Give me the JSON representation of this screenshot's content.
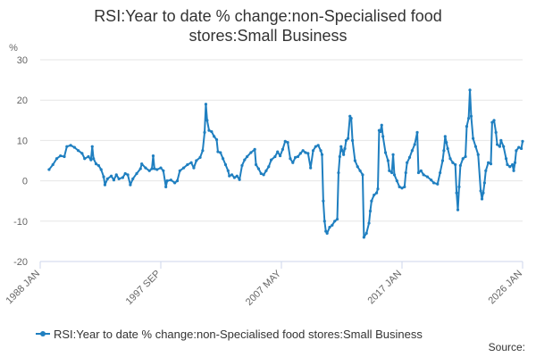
{
  "chart_data": {
    "type": "line",
    "title_line1": "RSI:Year to date % change:non-Specialised food",
    "title_line2": "stores:Small Business",
    "ylabel": "%",
    "ylim": [
      -20,
      30
    ],
    "yticks": [
      "30",
      "20",
      "10",
      "0",
      "-10",
      "-20"
    ],
    "xticks": [
      "1988 JAN",
      "1997 SEP",
      "2007 MAY",
      "2017 JAN",
      "2026 JAN"
    ],
    "xlim": [
      1988.0,
      2026.0
    ],
    "grid": true,
    "legend_position": "bottom",
    "source_label": "Source:",
    "color": "#1f7fc0",
    "series": [
      {
        "name": "RSI:Year to date % change:non-Specialised food stores:Small Business",
        "points": [
          [
            1988.7,
            2.8
          ],
          [
            1989.0,
            4.0
          ],
          [
            1989.3,
            5.5
          ],
          [
            1989.6,
            6.2
          ],
          [
            1989.9,
            6.0
          ],
          [
            1990.1,
            8.5
          ],
          [
            1990.4,
            8.8
          ],
          [
            1990.7,
            8.3
          ],
          [
            1991.0,
            7.5
          ],
          [
            1991.3,
            6.8
          ],
          [
            1991.5,
            5.5
          ],
          [
            1991.8,
            6.0
          ],
          [
            1992.0,
            5.2
          ],
          [
            1992.1,
            8.5
          ],
          [
            1992.2,
            5.5
          ],
          [
            1992.4,
            4.2
          ],
          [
            1992.6,
            3.8
          ],
          [
            1992.8,
            2.8
          ],
          [
            1993.0,
            1.0
          ],
          [
            1993.1,
            -1.0
          ],
          [
            1993.3,
            0.5
          ],
          [
            1993.6,
            1.2
          ],
          [
            1993.8,
            0.2
          ],
          [
            1994.0,
            1.5
          ],
          [
            1994.2,
            0.5
          ],
          [
            1994.5,
            0.8
          ],
          [
            1994.7,
            1.8
          ],
          [
            1994.9,
            1.5
          ],
          [
            1995.1,
            -1.0
          ],
          [
            1995.3,
            0.5
          ],
          [
            1995.6,
            1.8
          ],
          [
            1995.9,
            3.0
          ],
          [
            1996.0,
            4.2
          ],
          [
            1996.3,
            3.2
          ],
          [
            1996.6,
            2.5
          ],
          [
            1996.8,
            3.0
          ],
          [
            1996.9,
            6.2
          ],
          [
            1997.0,
            3.0
          ],
          [
            1997.2,
            2.8
          ],
          [
            1997.5,
            3.2
          ],
          [
            1997.7,
            2.5
          ],
          [
            1997.9,
            -1.5
          ],
          [
            1998.0,
            0.0
          ],
          [
            1998.3,
            0.2
          ],
          [
            1998.6,
            -0.5
          ],
          [
            1998.8,
            0.0
          ],
          [
            1999.0,
            2.5
          ],
          [
            1999.3,
            3.2
          ],
          [
            1999.6,
            4.0
          ],
          [
            1999.9,
            4.5
          ],
          [
            2000.1,
            3.2
          ],
          [
            2000.3,
            5.0
          ],
          [
            2000.6,
            5.8
          ],
          [
            2000.8,
            7.5
          ],
          [
            2000.95,
            12.0
          ],
          [
            2001.05,
            19.0
          ],
          [
            2001.15,
            15.0
          ],
          [
            2001.3,
            12.5
          ],
          [
            2001.5,
            12.2
          ],
          [
            2001.7,
            11.0
          ],
          [
            2001.9,
            10.2
          ],
          [
            2002.0,
            7.2
          ],
          [
            2002.2,
            7.0
          ],
          [
            2002.4,
            5.5
          ],
          [
            2002.6,
            4.0
          ],
          [
            2002.8,
            2.5
          ],
          [
            2002.9,
            1.2
          ],
          [
            2003.1,
            1.5
          ],
          [
            2003.3,
            0.8
          ],
          [
            2003.5,
            1.2
          ],
          [
            2003.7,
            0.3
          ],
          [
            2003.9,
            3.8
          ],
          [
            2004.1,
            5.2
          ],
          [
            2004.3,
            6.0
          ],
          [
            2004.6,
            7.0
          ],
          [
            2004.9,
            7.8
          ],
          [
            2005.0,
            4.0
          ],
          [
            2005.2,
            3.0
          ],
          [
            2005.4,
            1.8
          ],
          [
            2005.6,
            1.5
          ],
          [
            2005.8,
            2.5
          ],
          [
            2006.0,
            3.5
          ],
          [
            2006.2,
            5.2
          ],
          [
            2006.5,
            6.0
          ],
          [
            2006.7,
            7.2
          ],
          [
            2006.9,
            6.2
          ],
          [
            2007.1,
            7.8
          ],
          [
            2007.3,
            9.8
          ],
          [
            2007.5,
            9.5
          ],
          [
            2007.7,
            5.5
          ],
          [
            2007.9,
            4.5
          ],
          [
            2008.1,
            5.8
          ],
          [
            2008.3,
            6.0
          ],
          [
            2008.5,
            6.8
          ],
          [
            2008.7,
            7.5
          ],
          [
            2008.9,
            7.0
          ],
          [
            2009.1,
            6.8
          ],
          [
            2009.3,
            3.2
          ],
          [
            2009.5,
            7.5
          ],
          [
            2009.7,
            8.5
          ],
          [
            2009.9,
            8.8
          ],
          [
            2010.1,
            7.5
          ],
          [
            2010.2,
            6.5
          ],
          [
            2010.3,
            -5.0
          ],
          [
            2010.4,
            -10.0
          ],
          [
            2010.5,
            -12.5
          ],
          [
            2010.6,
            -13.0
          ],
          [
            2010.8,
            -11.5
          ],
          [
            2011.0,
            -11.0
          ],
          [
            2011.2,
            -10.0
          ],
          [
            2011.4,
            -9.5
          ],
          [
            2011.5,
            2.0
          ],
          [
            2011.6,
            6.0
          ],
          [
            2011.7,
            8.5
          ],
          [
            2011.8,
            7.5
          ],
          [
            2011.9,
            6.5
          ],
          [
            2012.0,
            8.0
          ],
          [
            2012.1,
            10.0
          ],
          [
            2012.25,
            10.5
          ],
          [
            2012.4,
            16.0
          ],
          [
            2012.5,
            15.5
          ],
          [
            2012.6,
            10.0
          ],
          [
            2012.8,
            5.0
          ],
          [
            2013.0,
            3.5
          ],
          [
            2013.2,
            2.5
          ],
          [
            2013.4,
            1.5
          ],
          [
            2013.5,
            -14.0
          ],
          [
            2013.7,
            -13.0
          ],
          [
            2013.9,
            -10.5
          ],
          [
            2014.0,
            -7.5
          ],
          [
            2014.1,
            -5.0
          ],
          [
            2014.3,
            -3.5
          ],
          [
            2014.5,
            -3.0
          ],
          [
            2014.6,
            -2.0
          ],
          [
            2014.7,
            12.5
          ],
          [
            2014.8,
            12.2
          ],
          [
            2014.9,
            13.8
          ],
          [
            2015.0,
            11.0
          ],
          [
            2015.2,
            7.0
          ],
          [
            2015.4,
            5.0
          ],
          [
            2015.5,
            2.5
          ],
          [
            2015.7,
            2.0
          ],
          [
            2015.8,
            6.5
          ],
          [
            2015.9,
            1.5
          ],
          [
            2016.1,
            0.0
          ],
          [
            2016.3,
            -1.5
          ],
          [
            2016.5,
            -1.8
          ],
          [
            2016.7,
            -1.5
          ],
          [
            2016.8,
            2.0
          ],
          [
            2016.9,
            4.5
          ],
          [
            2017.1,
            5.8
          ],
          [
            2017.3,
            7.5
          ],
          [
            2017.5,
            9.0
          ],
          [
            2017.7,
            12.0
          ],
          [
            2017.8,
            2.0
          ],
          [
            2018.0,
            2.5
          ],
          [
            2018.2,
            1.5
          ],
          [
            2018.5,
            1.0
          ],
          [
            2018.8,
            0.2
          ],
          [
            2019.0,
            -0.5
          ],
          [
            2019.3,
            -0.8
          ],
          [
            2019.5,
            2.0
          ],
          [
            2019.7,
            5.0
          ],
          [
            2019.8,
            7.5
          ],
          [
            2019.9,
            11.0
          ],
          [
            2020.0,
            9.5
          ],
          [
            2020.1,
            8.0
          ],
          [
            2020.3,
            5.5
          ],
          [
            2020.5,
            4.5
          ],
          [
            2020.7,
            4.0
          ],
          [
            2020.8,
            -3.0
          ],
          [
            2020.9,
            -7.2
          ],
          [
            2021.0,
            -1.5
          ],
          [
            2021.1,
            3.8
          ],
          [
            2021.3,
            5.5
          ],
          [
            2021.5,
            6.0
          ],
          [
            2021.6,
            13.5
          ],
          [
            2021.75,
            15.5
          ],
          [
            2021.85,
            22.5
          ],
          [
            2021.95,
            16.0
          ],
          [
            2022.1,
            10.5
          ],
          [
            2022.3,
            8.5
          ],
          [
            2022.5,
            6.5
          ],
          [
            2022.7,
            -2.5
          ],
          [
            2022.8,
            -4.5
          ],
          [
            2022.9,
            -3.0
          ],
          [
            2023.0,
            -0.5
          ],
          [
            2023.1,
            2.5
          ],
          [
            2023.3,
            4.5
          ],
          [
            2023.5,
            4.2
          ],
          [
            2023.6,
            14.5
          ],
          [
            2023.75,
            15.0
          ],
          [
            2023.9,
            12.0
          ],
          [
            2024.0,
            9.0
          ],
          [
            2024.2,
            8.5
          ],
          [
            2024.3,
            10.0
          ],
          [
            2024.5,
            8.5
          ],
          [
            2024.7,
            5.5
          ],
          [
            2024.8,
            4.0
          ],
          [
            2025.0,
            3.5
          ],
          [
            2025.2,
            4.0
          ],
          [
            2025.3,
            2.5
          ],
          [
            2025.4,
            4.5
          ],
          [
            2025.5,
            7.5
          ],
          [
            2025.7,
            8.3
          ],
          [
            2025.9,
            8.0
          ],
          [
            2026.0,
            9.8
          ]
        ]
      }
    ]
  }
}
